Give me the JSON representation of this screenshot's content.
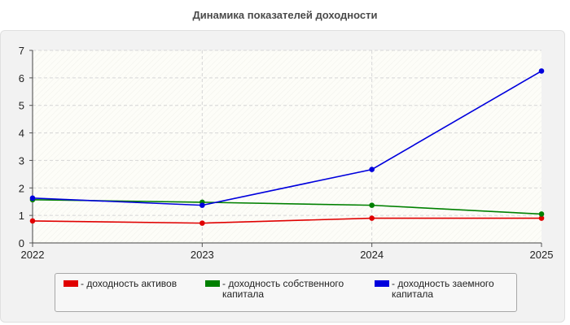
{
  "chart_data": {
    "type": "line",
    "title": "Динамика показателей доходности",
    "xlabel": "",
    "ylabel": "",
    "categories": [
      "2022",
      "2023",
      "2024",
      "2025"
    ],
    "ylim": [
      0,
      7
    ],
    "yticks": [
      "0",
      "1",
      "2",
      "3",
      "4",
      "5",
      "6",
      "7"
    ],
    "grid": true,
    "legend_position": "bottom",
    "series": [
      {
        "name": "- доходность активов",
        "color": "#e00000",
        "values": [
          0.8,
          0.72,
          0.9,
          0.9
        ]
      },
      {
        "name": "- доходность собственного капитала",
        "color": "#008000",
        "values": [
          1.57,
          1.48,
          1.37,
          1.05
        ]
      },
      {
        "name": "- доходность заемного капитала",
        "color": "#0000dd",
        "values": [
          1.63,
          1.37,
          2.67,
          6.25
        ]
      }
    ]
  }
}
